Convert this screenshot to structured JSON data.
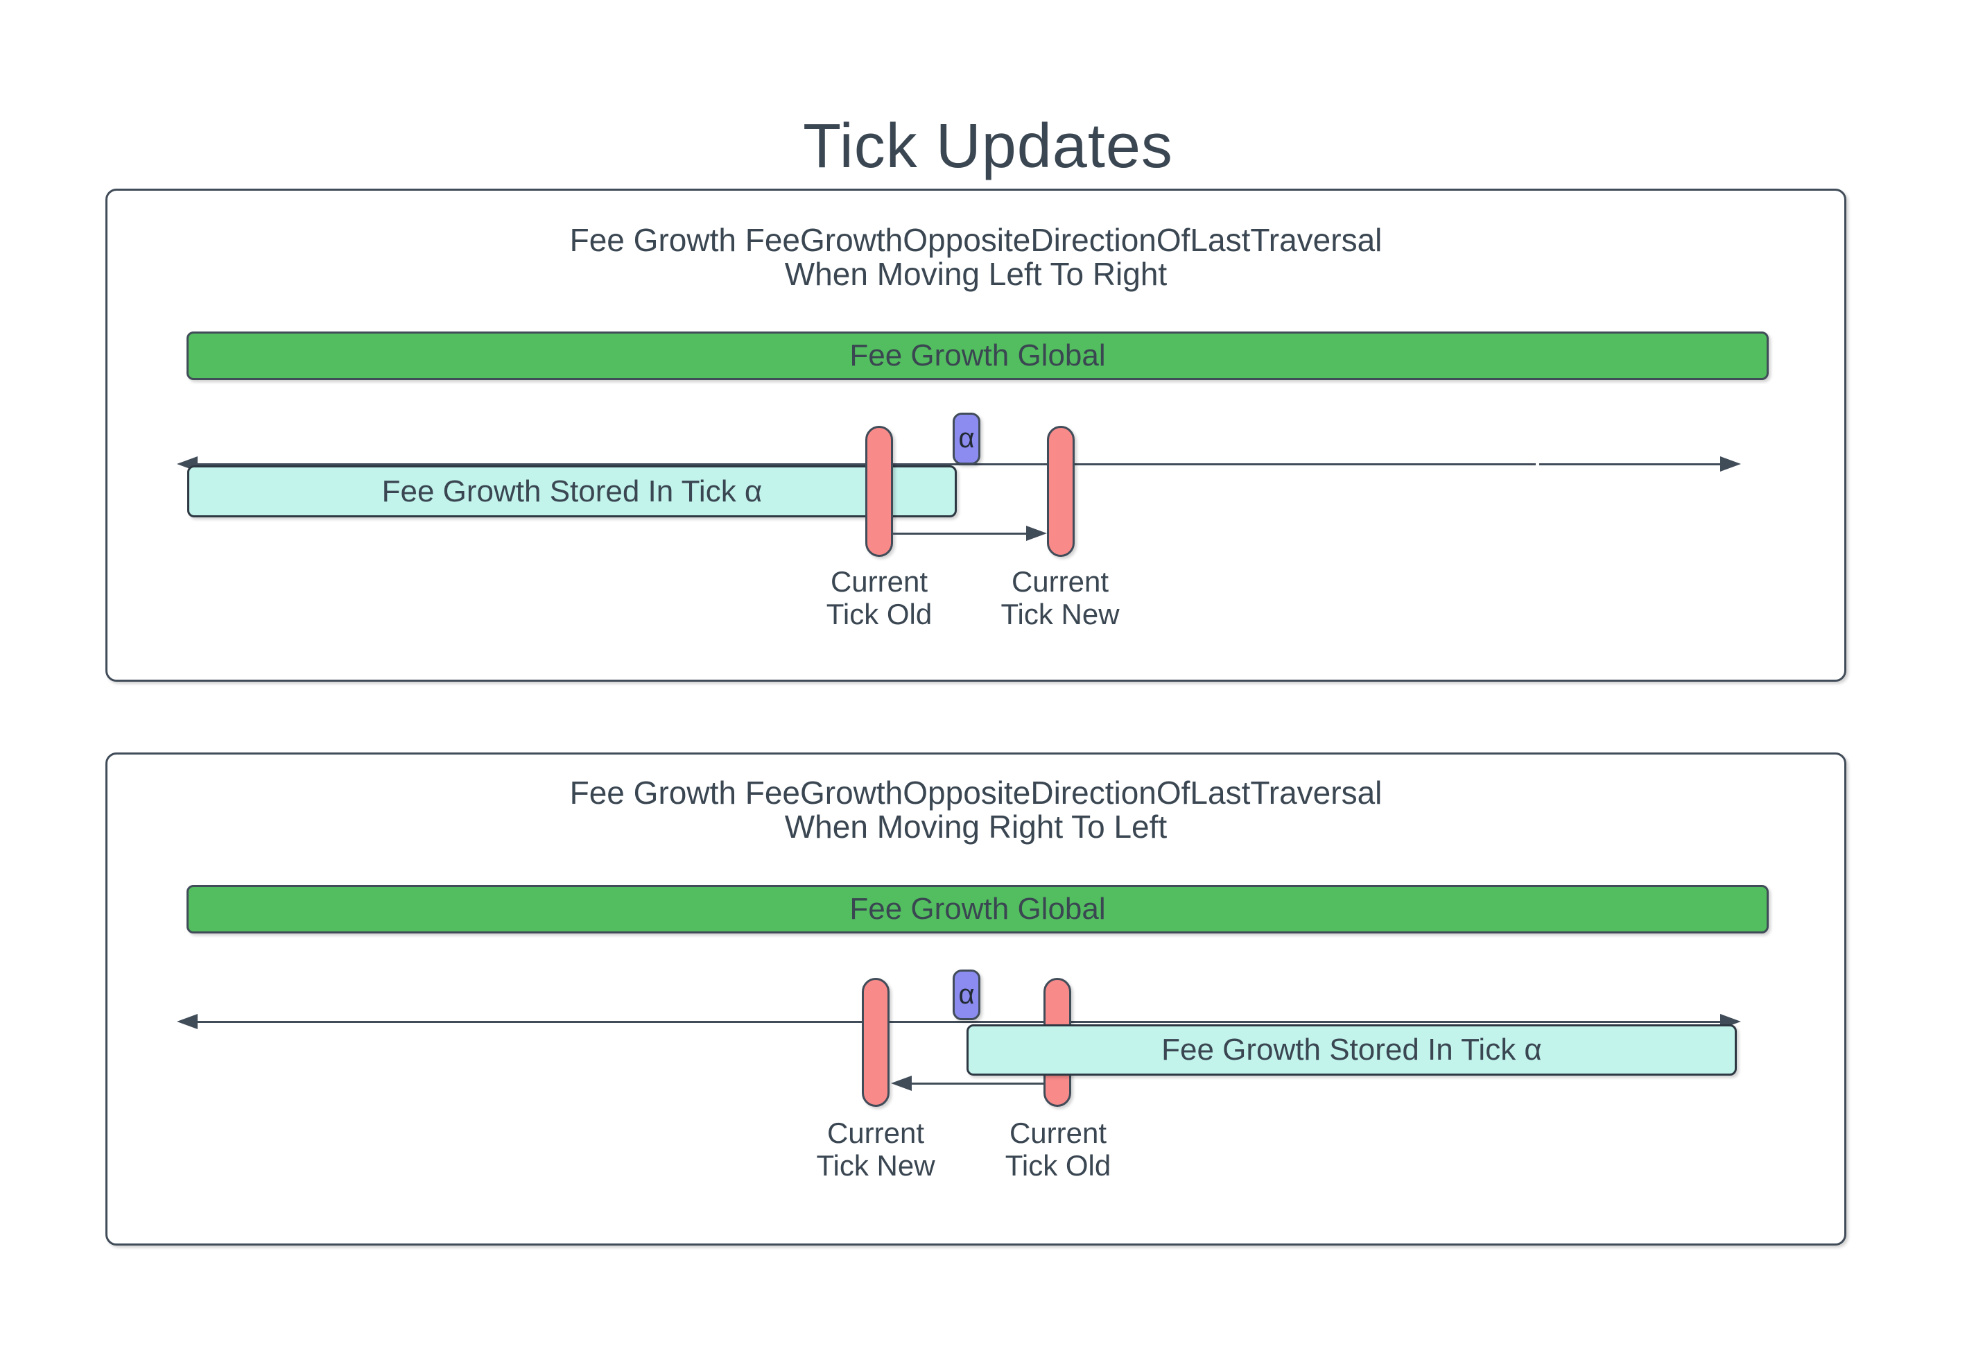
{
  "title": "Tick Updates",
  "colors": {
    "ink": "#3A4651",
    "stroke": "#414C59",
    "stroke-dark": "#2E3843",
    "green": "#53BE5F",
    "pink": "#F88A8A",
    "purple": "#8C8CF0",
    "teal": "#C2F4EC",
    "bg": "#FFFFFF"
  },
  "panels": [
    {
      "heading_line1": "Fee Growth FeeGrowthOppositeDirectionOfLastTraversal",
      "heading_line2": "When Moving Left To Right",
      "global_bar_label": "Fee Growth Global",
      "stored_bar_label": "Fee Growth Stored In Tick α",
      "alpha_label": "α",
      "left_tick_label_line1": "Current",
      "left_tick_label_line2": "Tick Old",
      "right_tick_label_line1": "Current",
      "right_tick_label_line2": "Tick New"
    },
    {
      "heading_line1": "Fee Growth FeeGrowthOppositeDirectionOfLastTraversal",
      "heading_line2": "When Moving Right To Left",
      "global_bar_label": "Fee Growth Global",
      "stored_bar_label": "Fee Growth Stored In Tick α",
      "alpha_label": "α",
      "left_tick_label_line1": "Current",
      "left_tick_label_line2": "Tick New",
      "right_tick_label_line1": "Current",
      "right_tick_label_line2": "Tick Old"
    }
  ]
}
